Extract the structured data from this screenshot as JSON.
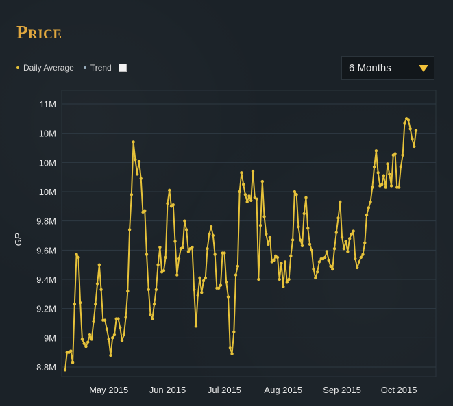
{
  "header": {
    "title": "Price"
  },
  "legend": {
    "daily_average": "Daily Average",
    "trend": "Trend"
  },
  "range_select": {
    "value": "6 Months"
  },
  "colors": {
    "line": "#e6c23a",
    "trend_dot": "#9bb1c0",
    "title": "#e0a73f",
    "grid": "#2e3a43"
  },
  "chart_data": {
    "type": "line",
    "title": "Price",
    "ylabel": "GP",
    "xlabel": "",
    "yticks": [
      "8.8M",
      "9M",
      "9.2M",
      "9.4M",
      "9.6M",
      "9.8M",
      "10M",
      "10M",
      "10M",
      "11M"
    ],
    "ylim": [
      8.8,
      10.6
    ],
    "xticks": [
      "May 2015",
      "Jun 2015",
      "Jul 2015",
      "Aug 2015",
      "Sep 2015",
      "Oct 2015"
    ],
    "legend": [
      "Daily Average",
      "Trend"
    ],
    "grid": true,
    "series": [
      {
        "name": "Daily Average",
        "start_date": "2015-04-08",
        "interval_days": 1,
        "values": [
          8.78,
          8.9,
          8.9,
          8.91,
          8.83,
          9.23,
          9.57,
          9.55,
          9.24,
          8.99,
          8.96,
          8.94,
          8.97,
          9.02,
          8.99,
          9.11,
          9.23,
          9.37,
          9.5,
          9.33,
          9.12,
          9.12,
          9.06,
          8.99,
          8.88,
          9.0,
          9.02,
          9.13,
          9.13,
          9.07,
          8.98,
          9.02,
          9.14,
          9.32,
          9.74,
          9.98,
          10.34,
          10.22,
          10.12,
          10.21,
          10.09,
          9.86,
          9.87,
          9.57,
          9.33,
          9.16,
          9.13,
          9.23,
          9.33,
          9.5,
          9.62,
          9.45,
          9.46,
          9.55,
          9.92,
          10.01,
          9.9,
          9.91,
          9.66,
          9.43,
          9.54,
          9.61,
          9.62,
          9.8,
          9.74,
          9.59,
          9.61,
          9.62,
          9.33,
          9.08,
          9.29,
          9.41,
          9.31,
          9.39,
          9.41,
          9.61,
          9.71,
          9.76,
          9.7,
          9.57,
          9.34,
          9.34,
          9.36,
          9.58,
          9.58,
          9.38,
          9.28,
          8.93,
          8.89,
          9.04,
          9.43,
          9.49,
          10.0,
          10.13,
          10.05,
          9.98,
          9.93,
          9.97,
          9.94,
          10.14,
          9.96,
          9.95,
          9.4,
          9.77,
          10.07,
          9.83,
          9.71,
          9.64,
          9.69,
          9.52,
          9.53,
          9.56,
          9.55,
          9.4,
          9.51,
          9.35,
          9.52,
          9.38,
          9.4,
          9.56,
          9.67,
          10.0,
          9.98,
          9.76,
          9.67,
          9.63,
          9.85,
          9.96,
          9.75,
          9.64,
          9.6,
          9.47,
          9.41,
          9.45,
          9.52,
          9.54,
          9.54,
          9.55,
          9.59,
          9.53,
          9.49,
          9.47,
          9.61,
          9.72,
          9.82,
          9.93,
          9.69,
          9.61,
          9.66,
          9.59,
          9.68,
          9.71,
          9.73,
          9.54,
          9.48,
          9.52,
          9.55,
          9.57,
          9.65,
          9.84,
          9.89,
          9.93,
          10.03,
          10.17,
          10.28,
          10.13,
          10.04,
          10.05,
          10.11,
          10.03,
          10.19,
          10.12,
          10.04,
          10.25,
          10.26,
          10.03,
          10.03,
          10.17,
          10.25,
          10.47,
          10.5,
          10.49,
          10.43,
          10.36,
          10.31,
          10.42
        ]
      }
    ]
  }
}
